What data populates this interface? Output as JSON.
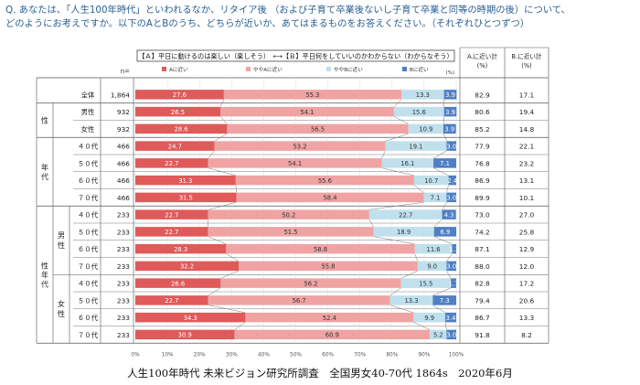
{
  "question": "Q. あなたは、「人生100年時代」といわれるなか、リタイア後 （および子育て卒業後ないし子育て卒業と同等の時期の後）について、\nどのようにお考えですか。以下のAとBのうち、どちらが近いか、あてはまるものをお答えください。（それぞれひとつずつ）",
  "source": "人生100年時代 未来ビジョン研究所調査　全国男女40-70代 1864s　2020年6月",
  "n_label": "n=",
  "pct_unit": "(%)",
  "colors": {
    "a": "#e05a5a",
    "lean_a": "#f0a3a3",
    "lean_b": "#bfe0ec",
    "b": "#4f7fc4"
  },
  "chart_data": {
    "type": "bar",
    "stacked": true,
    "orientation": "horizontal",
    "header": "【Ａ】平日に動けるのは楽しい（楽しそう）　⟷【Ｂ】平日何をしていいのかわからない（わからなそう）",
    "legend": [
      "Aに近い",
      "ややAに近い",
      "ややBに近い",
      "Bに近い"
    ],
    "summary_headers": [
      "A.に近い計\n(%)",
      "B.に近い計\n(%)"
    ],
    "xticks": [
      "0%",
      "10%",
      "20%",
      "30%",
      "40%",
      "50%",
      "60%",
      "70%",
      "80%",
      "90%",
      "100%"
    ],
    "xlim": [
      0,
      100
    ],
    "groups": [
      {
        "label": "",
        "rows": [
          0
        ]
      },
      {
        "label": "性",
        "rows": [
          1,
          2
        ]
      },
      {
        "label": "年代",
        "rows": [
          3,
          4,
          5,
          6
        ]
      },
      {
        "label": "性年代",
        "rows": [
          7,
          8,
          9,
          10,
          11,
          12,
          13,
          14
        ],
        "subgroups": [
          {
            "label": "男性",
            "rows": [
              7,
              8,
              9,
              10
            ]
          },
          {
            "label": "女性",
            "rows": [
              11,
              12,
              13,
              14
            ]
          }
        ]
      }
    ],
    "rows": [
      {
        "label": "全体",
        "n": "1,864",
        "values": [
          27.6,
          55.3,
          13.3,
          3.9
        ],
        "a_total": 82.9,
        "b_total": 17.1
      },
      {
        "label": "男性",
        "n": "932",
        "values": [
          26.5,
          54.1,
          15.6,
          3.9
        ],
        "a_total": 80.6,
        "b_total": 19.4
      },
      {
        "label": "女性",
        "n": "932",
        "values": [
          28.6,
          56.5,
          10.9,
          3.9
        ],
        "a_total": 85.2,
        "b_total": 14.8
      },
      {
        "label": "４０代",
        "n": "466",
        "values": [
          24.7,
          53.2,
          19.1,
          3.0
        ],
        "a_total": 77.9,
        "b_total": 22.1
      },
      {
        "label": "５０代",
        "n": "466",
        "values": [
          22.7,
          54.1,
          16.1,
          7.1
        ],
        "a_total": 76.8,
        "b_total": 23.2
      },
      {
        "label": "６０代",
        "n": "466",
        "values": [
          31.3,
          55.6,
          10.7,
          2.4
        ],
        "a_total": 86.9,
        "b_total": 13.1
      },
      {
        "label": "７０代",
        "n": "466",
        "values": [
          31.5,
          58.4,
          7.1,
          3.0
        ],
        "a_total": 89.9,
        "b_total": 10.1
      },
      {
        "label": "４０代",
        "n": "233",
        "values": [
          22.7,
          50.2,
          22.7,
          4.3
        ],
        "a_total": 73.0,
        "b_total": 27.0
      },
      {
        "label": "５０代",
        "n": "233",
        "values": [
          22.7,
          51.5,
          18.9,
          6.9
        ],
        "a_total": 74.2,
        "b_total": 25.8
      },
      {
        "label": "６０代",
        "n": "233",
        "values": [
          28.3,
          58.8,
          11.6,
          1.3
        ],
        "a_total": 87.1,
        "b_total": 12.9
      },
      {
        "label": "７０代",
        "n": "233",
        "values": [
          32.2,
          55.8,
          9.0,
          3.0
        ],
        "a_total": 88.0,
        "b_total": 12.0
      },
      {
        "label": "４０代",
        "n": "233",
        "values": [
          26.6,
          56.2,
          15.5,
          1.7
        ],
        "a_total": 82.8,
        "b_total": 17.2
      },
      {
        "label": "５０代",
        "n": "233",
        "values": [
          22.7,
          56.7,
          13.3,
          7.3
        ],
        "a_total": 79.4,
        "b_total": 20.6
      },
      {
        "label": "６０代",
        "n": "233",
        "values": [
          34.3,
          52.4,
          9.9,
          3.4
        ],
        "a_total": 86.7,
        "b_total": 13.3
      },
      {
        "label": "７０代",
        "n": "233",
        "values": [
          30.9,
          60.9,
          5.2,
          3.0
        ],
        "a_total": 91.8,
        "b_total": 8.2
      }
    ]
  }
}
